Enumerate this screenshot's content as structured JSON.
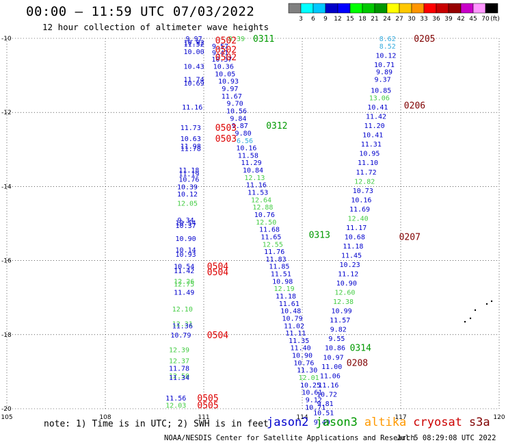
{
  "header": {
    "title": "00:00 – 11:59 UTC 07/03/2022",
    "subtitle": "12 hour collection of altimeter wave heights"
  },
  "colorbar": {
    "labels": [
      "3",
      "6",
      "9",
      "12",
      "15",
      "18",
      "21",
      "24",
      "27",
      "30",
      "33",
      "36",
      "39",
      "42",
      "45",
      "70",
      "(ft)"
    ],
    "colors": [
      "#808080",
      "#00ffff",
      "#00c8ff",
      "#0000c8",
      "#0000ff",
      "#00ff00",
      "#00c800",
      "#009600",
      "#ffff00",
      "#ffc800",
      "#ff9600",
      "#ff0000",
      "#c80000",
      "#960000",
      "#c800c8",
      "#ff96ff",
      "#000000"
    ]
  },
  "footer": {
    "note": "note: 1) Time is in UTC; 2) SWH is in feet",
    "legend": [
      {
        "name": "jason2",
        "color": "#0000cc"
      },
      {
        "name": "jason3",
        "color": "#009900"
      },
      {
        "name": "altika",
        "color": "#ff9900"
      },
      {
        "name": "cryosat",
        "color": "#cc0000"
      },
      {
        "name": "s3a",
        "color": "#800000"
      }
    ],
    "credit": "NOAA/NESDIS Center for Satellite Applications and Research",
    "timestamp": "Jul  5 08:29:08 UTC 2022"
  },
  "chart_data": {
    "type": "scatter",
    "title": "00:00 – 11:59 UTC 07/03/2022",
    "subtitle": "12 hour collection of altimeter wave heights",
    "xlim": [
      105,
      120
    ],
    "ylim": [
      -20,
      -10
    ],
    "x_ticks": [
      "105",
      "108",
      "111",
      "114",
      "117",
      "120"
    ],
    "y_ticks": [
      "-10",
      "-12",
      "-14",
      "-16",
      "-18",
      "-20"
    ],
    "grid": true,
    "points": [
      {
        "lon": 110.7,
        "lat": -10.0,
        "v": "9.97",
        "c": "#0000cc"
      },
      {
        "lon": 110.7,
        "lat": -10.1,
        "v": "10.92",
        "c": "#0000cc"
      },
      {
        "lon": 110.7,
        "lat": -10.15,
        "v": "11.52",
        "c": "#0000cc"
      },
      {
        "lon": 110.7,
        "lat": -10.35,
        "v": "10.00",
        "c": "#0000cc"
      },
      {
        "lon": 110.7,
        "lat": -10.75,
        "v": "10.43",
        "c": "#0000cc"
      },
      {
        "lon": 110.7,
        "lat": -11.1,
        "v": "11.74",
        "c": "#0000cc"
      },
      {
        "lon": 110.7,
        "lat": -11.2,
        "v": "10.69",
        "c": "#0000cc"
      },
      {
        "lon": 110.65,
        "lat": -11.85,
        "v": "11.16",
        "c": "#0000cc"
      },
      {
        "lon": 110.6,
        "lat": -12.4,
        "v": "11.73",
        "c": "#0000cc"
      },
      {
        "lon": 110.6,
        "lat": -12.7,
        "v": "10.63",
        "c": "#0000cc"
      },
      {
        "lon": 110.6,
        "lat": -12.9,
        "v": "11.98",
        "c": "#0000cc"
      },
      {
        "lon": 110.6,
        "lat": -12.97,
        "v": "11.78",
        "c": "#0000cc"
      },
      {
        "lon": 110.55,
        "lat": -13.55,
        "v": "11.18",
        "c": "#0000cc"
      },
      {
        "lon": 110.55,
        "lat": -13.65,
        "v": "11.19",
        "c": "#0000cc"
      },
      {
        "lon": 110.55,
        "lat": -13.8,
        "v": "10.76",
        "c": "#0000cc"
      },
      {
        "lon": 110.5,
        "lat": -14.0,
        "v": "10.39",
        "c": "#0000cc"
      },
      {
        "lon": 110.5,
        "lat": -14.2,
        "v": "10.12",
        "c": "#0000cc"
      },
      {
        "lon": 110.5,
        "lat": -14.45,
        "v": "12.05",
        "c": "#44cc44"
      },
      {
        "lon": 110.45,
        "lat": -14.9,
        "v": "9.34",
        "c": "#0000cc"
      },
      {
        "lon": 110.45,
        "lat": -14.97,
        "v": "10.54",
        "c": "#0000cc"
      },
      {
        "lon": 110.45,
        "lat": -15.05,
        "v": "10.37",
        "c": "#0000cc"
      },
      {
        "lon": 110.45,
        "lat": -15.4,
        "v": "10.90",
        "c": "#0000cc"
      },
      {
        "lon": 110.45,
        "lat": -15.7,
        "v": "10.14",
        "c": "#0000cc"
      },
      {
        "lon": 110.45,
        "lat": -15.82,
        "v": "10.93",
        "c": "#0000cc"
      },
      {
        "lon": 110.4,
        "lat": -16.15,
        "v": "10.54",
        "c": "#0000cc"
      },
      {
        "lon": 110.4,
        "lat": -16.27,
        "v": "11.42",
        "c": "#0000cc"
      },
      {
        "lon": 110.4,
        "lat": -16.55,
        "v": "12.26",
        "c": "#44cc44"
      },
      {
        "lon": 110.4,
        "lat": -16.63,
        "v": "12.75",
        "c": "#44cc44"
      },
      {
        "lon": 110.4,
        "lat": -16.85,
        "v": "11.49",
        "c": "#0000cc"
      },
      {
        "lon": 110.35,
        "lat": -17.3,
        "v": "12.10",
        "c": "#44cc44"
      },
      {
        "lon": 110.35,
        "lat": -17.7,
        "v": "12.31",
        "c": "#44cc44"
      },
      {
        "lon": 110.35,
        "lat": -17.75,
        "v": "11.36",
        "c": "#0000cc"
      },
      {
        "lon": 110.3,
        "lat": -18.0,
        "v": "10.79",
        "c": "#0000cc"
      },
      {
        "lon": 110.25,
        "lat": -18.4,
        "v": "12.39",
        "c": "#44cc44"
      },
      {
        "lon": 110.25,
        "lat": -18.7,
        "v": "12.37",
        "c": "#44cc44"
      },
      {
        "lon": 110.25,
        "lat": -18.9,
        "v": "11.78",
        "c": "#0000cc"
      },
      {
        "lon": 110.25,
        "lat": -19.1,
        "v": "12.50",
        "c": "#44cc44"
      },
      {
        "lon": 110.25,
        "lat": -19.15,
        "v": "11.34",
        "c": "#0000cc"
      },
      {
        "lon": 110.15,
        "lat": -19.7,
        "v": "11.56",
        "c": "#0000cc"
      },
      {
        "lon": 110.15,
        "lat": -19.9,
        "v": "12.03",
        "c": "#44cc44"
      },
      {
        "lon": 111.5,
        "lat": -10.2,
        "v": "9.57",
        "c": "#0000cc"
      },
      {
        "lon": 111.5,
        "lat": -10.38,
        "v": "9.41",
        "c": "#0000cc"
      },
      {
        "lon": 111.55,
        "lat": -10.55,
        "v": "10.37",
        "c": "#0000cc"
      },
      {
        "lon": 111.6,
        "lat": -10.75,
        "v": "10.36",
        "c": "#0000cc"
      },
      {
        "lon": 111.65,
        "lat": -10.95,
        "v": "10.05",
        "c": "#0000cc"
      },
      {
        "lon": 111.75,
        "lat": -11.15,
        "v": "10.93",
        "c": "#0000cc"
      },
      {
        "lon": 111.8,
        "lat": -11.35,
        "v": "9.97",
        "c": "#0000cc"
      },
      {
        "lon": 111.85,
        "lat": -11.55,
        "v": "11.67",
        "c": "#0000cc"
      },
      {
        "lon": 111.95,
        "lat": -11.75,
        "v": "9.70",
        "c": "#0000cc"
      },
      {
        "lon": 112.0,
        "lat": -11.95,
        "v": "10.56",
        "c": "#0000cc"
      },
      {
        "lon": 112.05,
        "lat": -12.15,
        "v": "9.84",
        "c": "#0000cc"
      },
      {
        "lon": 112.1,
        "lat": -12.35,
        "v": "9.87",
        "c": "#0000cc"
      },
      {
        "lon": 112.2,
        "lat": -12.55,
        "v": "9.80",
        "c": "#0000cc"
      },
      {
        "lon": 112.25,
        "lat": -12.75,
        "v": "6.56",
        "c": "#33aadd"
      },
      {
        "lon": 112.3,
        "lat": -12.95,
        "v": "10.16",
        "c": "#0000cc"
      },
      {
        "lon": 112.35,
        "lat": -13.15,
        "v": "11.58",
        "c": "#0000cc"
      },
      {
        "lon": 112.45,
        "lat": -13.35,
        "v": "11.29",
        "c": "#0000cc"
      },
      {
        "lon": 112.5,
        "lat": -13.55,
        "v": "10.84",
        "c": "#0000cc"
      },
      {
        "lon": 112.55,
        "lat": -13.75,
        "v": "12.13",
        "c": "#44cc44"
      },
      {
        "lon": 112.6,
        "lat": -13.95,
        "v": "11.16",
        "c": "#0000cc"
      },
      {
        "lon": 112.65,
        "lat": -14.15,
        "v": "11.53",
        "c": "#0000cc"
      },
      {
        "lon": 112.75,
        "lat": -14.35,
        "v": "12.64",
        "c": "#44cc44"
      },
      {
        "lon": 112.8,
        "lat": -14.55,
        "v": "12.88",
        "c": "#44cc44"
      },
      {
        "lon": 112.85,
        "lat": -14.75,
        "v": "10.76",
        "c": "#0000cc"
      },
      {
        "lon": 112.9,
        "lat": -14.95,
        "v": "12.50",
        "c": "#44cc44"
      },
      {
        "lon": 113.0,
        "lat": -15.15,
        "v": "11.68",
        "c": "#0000cc"
      },
      {
        "lon": 113.05,
        "lat": -15.35,
        "v": "11.65",
        "c": "#0000cc"
      },
      {
        "lon": 113.1,
        "lat": -15.55,
        "v": "12.55",
        "c": "#44cc44"
      },
      {
        "lon": 113.15,
        "lat": -15.75,
        "v": "11.76",
        "c": "#0000cc"
      },
      {
        "lon": 113.2,
        "lat": -15.95,
        "v": "11.83",
        "c": "#0000cc"
      },
      {
        "lon": 113.3,
        "lat": -16.15,
        "v": "11.85",
        "c": "#0000cc"
      },
      {
        "lon": 113.35,
        "lat": -16.35,
        "v": "11.51",
        "c": "#0000cc"
      },
      {
        "lon": 113.4,
        "lat": -16.55,
        "v": "10.98",
        "c": "#0000cc"
      },
      {
        "lon": 113.45,
        "lat": -16.75,
        "v": "12.19",
        "c": "#44cc44"
      },
      {
        "lon": 113.5,
        "lat": -16.95,
        "v": "11.18",
        "c": "#0000cc"
      },
      {
        "lon": 113.6,
        "lat": -17.15,
        "v": "11.61",
        "c": "#0000cc"
      },
      {
        "lon": 113.65,
        "lat": -17.35,
        "v": "10.48",
        "c": "#0000cc"
      },
      {
        "lon": 113.7,
        "lat": -17.55,
        "v": "10.79",
        "c": "#0000cc"
      },
      {
        "lon": 113.75,
        "lat": -17.75,
        "v": "11.02",
        "c": "#0000cc"
      },
      {
        "lon": 113.8,
        "lat": -17.95,
        "v": "11.11",
        "c": "#0000cc"
      },
      {
        "lon": 113.9,
        "lat": -18.15,
        "v": "11.35",
        "c": "#0000cc"
      },
      {
        "lon": 113.95,
        "lat": -18.35,
        "v": "11.40",
        "c": "#0000cc"
      },
      {
        "lon": 114.0,
        "lat": -18.55,
        "v": "10.90",
        "c": "#0000cc"
      },
      {
        "lon": 114.05,
        "lat": -18.75,
        "v": "10.76",
        "c": "#0000cc"
      },
      {
        "lon": 114.15,
        "lat": -18.95,
        "v": "11.30",
        "c": "#0000cc"
      },
      {
        "lon": 114.2,
        "lat": -19.15,
        "v": "12.01",
        "c": "#44cc44"
      },
      {
        "lon": 114.25,
        "lat": -19.35,
        "v": "10.25",
        "c": "#0000cc"
      },
      {
        "lon": 114.3,
        "lat": -19.55,
        "v": "10.61",
        "c": "#0000cc"
      },
      {
        "lon": 114.35,
        "lat": -19.75,
        "v": "9.12",
        "c": "#0000cc"
      },
      {
        "lon": 114.4,
        "lat": -19.95,
        "v": "10.71",
        "c": "#0000cc"
      },
      {
        "lon": 116.6,
        "lat": -10.0,
        "v": "8.62",
        "c": "#33aadd"
      },
      {
        "lon": 116.6,
        "lat": -10.2,
        "v": "8.52",
        "c": "#33aadd"
      },
      {
        "lon": 116.55,
        "lat": -10.45,
        "v": "10.12",
        "c": "#0000cc"
      },
      {
        "lon": 116.5,
        "lat": -10.7,
        "v": "10.71",
        "c": "#0000cc"
      },
      {
        "lon": 116.5,
        "lat": -10.9,
        "v": "9.89",
        "c": "#0000cc"
      },
      {
        "lon": 116.45,
        "lat": -11.1,
        "v": "9.37",
        "c": "#0000cc"
      },
      {
        "lon": 116.4,
        "lat": -11.4,
        "v": "10.85",
        "c": "#0000cc"
      },
      {
        "lon": 116.35,
        "lat": -11.6,
        "v": "13.06",
        "c": "#44cc44"
      },
      {
        "lon": 116.3,
        "lat": -11.85,
        "v": "10.41",
        "c": "#0000cc"
      },
      {
        "lon": 116.25,
        "lat": -12.1,
        "v": "11.42",
        "c": "#0000cc"
      },
      {
        "lon": 116.2,
        "lat": -12.35,
        "v": "11.20",
        "c": "#0000cc"
      },
      {
        "lon": 116.15,
        "lat": -12.6,
        "v": "10.41",
        "c": "#0000cc"
      },
      {
        "lon": 116.1,
        "lat": -12.85,
        "v": "11.31",
        "c": "#0000cc"
      },
      {
        "lon": 116.05,
        "lat": -13.1,
        "v": "10.95",
        "c": "#0000cc"
      },
      {
        "lon": 116.0,
        "lat": -13.35,
        "v": "11.10",
        "c": "#0000cc"
      },
      {
        "lon": 115.95,
        "lat": -13.6,
        "v": "11.72",
        "c": "#0000cc"
      },
      {
        "lon": 115.9,
        "lat": -13.85,
        "v": "12.82",
        "c": "#44cc44"
      },
      {
        "lon": 115.85,
        "lat": -14.1,
        "v": "10.73",
        "c": "#0000cc"
      },
      {
        "lon": 115.8,
        "lat": -14.35,
        "v": "10.16",
        "c": "#0000cc"
      },
      {
        "lon": 115.75,
        "lat": -14.6,
        "v": "11.69",
        "c": "#0000cc"
      },
      {
        "lon": 115.7,
        "lat": -14.85,
        "v": "12.40",
        "c": "#44cc44"
      },
      {
        "lon": 115.65,
        "lat": -15.1,
        "v": "11.17",
        "c": "#0000cc"
      },
      {
        "lon": 115.6,
        "lat": -15.35,
        "v": "10.68",
        "c": "#0000cc"
      },
      {
        "lon": 115.55,
        "lat": -15.6,
        "v": "11.18",
        "c": "#0000cc"
      },
      {
        "lon": 115.5,
        "lat": -15.85,
        "v": "11.45",
        "c": "#0000cc"
      },
      {
        "lon": 115.45,
        "lat": -16.1,
        "v": "10.23",
        "c": "#0000cc"
      },
      {
        "lon": 115.4,
        "lat": -16.35,
        "v": "11.12",
        "c": "#0000cc"
      },
      {
        "lon": 115.35,
        "lat": -16.6,
        "v": "10.90",
        "c": "#0000cc"
      },
      {
        "lon": 115.3,
        "lat": -16.85,
        "v": "12.60",
        "c": "#44cc44"
      },
      {
        "lon": 115.25,
        "lat": -17.1,
        "v": "12.38",
        "c": "#44cc44"
      },
      {
        "lon": 115.2,
        "lat": -17.35,
        "v": "10.99",
        "c": "#0000cc"
      },
      {
        "lon": 115.15,
        "lat": -17.6,
        "v": "11.57",
        "c": "#0000cc"
      },
      {
        "lon": 115.1,
        "lat": -17.85,
        "v": "9.82",
        "c": "#0000cc"
      },
      {
        "lon": 115.05,
        "lat": -18.1,
        "v": "9.55",
        "c": "#0000cc"
      },
      {
        "lon": 115.0,
        "lat": -18.35,
        "v": "10.86",
        "c": "#0000cc"
      },
      {
        "lon": 114.95,
        "lat": -18.6,
        "v": "10.97",
        "c": "#0000cc"
      },
      {
        "lon": 114.9,
        "lat": -18.85,
        "v": "11.00",
        "c": "#0000cc"
      },
      {
        "lon": 114.85,
        "lat": -19.1,
        "v": "11.06",
        "c": "#0000cc"
      },
      {
        "lon": 114.8,
        "lat": -19.35,
        "v": "11.16",
        "c": "#0000cc"
      },
      {
        "lon": 114.75,
        "lat": -19.6,
        "v": "10.72",
        "c": "#0000cc"
      },
      {
        "lon": 114.7,
        "lat": -19.85,
        "v": "9.81",
        "c": "#0000cc"
      },
      {
        "lon": 114.65,
        "lat": -20.1,
        "v": "10.51",
        "c": "#0000cc"
      },
      {
        "lon": 114.6,
        "lat": -20.35,
        "v": "9.49",
        "c": "#0000cc"
      }
    ],
    "pass_labels": [
      {
        "lon": 111.35,
        "lat": -10.05,
        "text": "0502",
        "c": "#dd0000"
      },
      {
        "lon": 111.35,
        "lat": -10.3,
        "text": "0502",
        "c": "#dd0000"
      },
      {
        "lon": 111.35,
        "lat": -10.5,
        "text": "0502",
        "c": "#dd0000"
      },
      {
        "lon": 112.5,
        "lat": -10.0,
        "text": "0311",
        "c": "#009900"
      },
      {
        "lon": 111.35,
        "lat": -12.4,
        "text": "0503",
        "c": "#dd0000"
      },
      {
        "lon": 111.35,
        "lat": -12.7,
        "text": "0503",
        "c": "#dd0000"
      },
      {
        "lon": 112.9,
        "lat": -12.35,
        "text": "0312",
        "c": "#009900"
      },
      {
        "lon": 114.2,
        "lat": -15.3,
        "text": "0313",
        "c": "#009900"
      },
      {
        "lon": 111.1,
        "lat": -16.15,
        "text": "0504",
        "c": "#dd0000"
      },
      {
        "lon": 111.1,
        "lat": -16.3,
        "text": "0504",
        "c": "#dd0000"
      },
      {
        "lon": 111.1,
        "lat": -18.0,
        "text": "0504",
        "c": "#dd0000"
      },
      {
        "lon": 115.45,
        "lat": -18.35,
        "text": "0314",
        "c": "#009900"
      },
      {
        "lon": 115.35,
        "lat": -18.75,
        "text": "0208",
        "c": "#800000"
      },
      {
        "lon": 110.8,
        "lat": -19.7,
        "text": "0505",
        "c": "#dd0000"
      },
      {
        "lon": 110.8,
        "lat": -19.9,
        "text": "0505",
        "c": "#dd0000"
      },
      {
        "lon": 117.4,
        "lat": -10.0,
        "text": "0205",
        "c": "#800000"
      },
      {
        "lon": 117.1,
        "lat": -11.8,
        "text": "0206",
        "c": "#800000"
      },
      {
        "lon": 116.95,
        "lat": -15.35,
        "text": "0207",
        "c": "#800000"
      }
    ],
    "extra_labels": [
      {
        "lon": 112.0,
        "lat": -10.0,
        "text": "9.39",
        "c": "#44cc44"
      }
    ]
  }
}
